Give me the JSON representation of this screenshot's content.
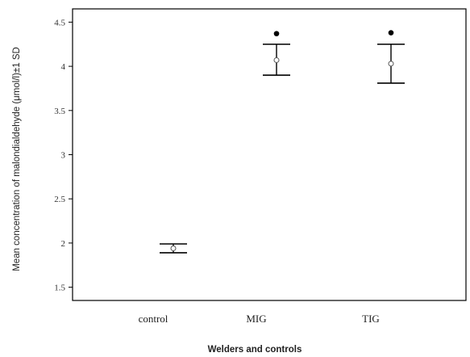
{
  "chart_data": {
    "type": "scatter",
    "subtype": "error-bar",
    "xlabel": "Welders and controls",
    "ylabel": "Mean concentration of malondialdehyde (μmol/l)±1 SD",
    "categories": [
      "control",
      "MIG",
      "TIG"
    ],
    "mean": [
      1.94,
      4.07,
      4.03
    ],
    "error_lower": [
      1.89,
      3.9,
      3.81
    ],
    "error_upper": [
      1.99,
      4.25,
      4.25
    ],
    "outliers": [
      {
        "category": "MIG",
        "value": 4.37
      },
      {
        "category": "TIG",
        "value": 4.38
      }
    ],
    "ylim": [
      1.35,
      4.65
    ],
    "yticks": [
      "1.5",
      "2",
      "2.5",
      "3",
      "3.5",
      "4",
      "4.5"
    ],
    "grid": false,
    "legend": "none"
  }
}
